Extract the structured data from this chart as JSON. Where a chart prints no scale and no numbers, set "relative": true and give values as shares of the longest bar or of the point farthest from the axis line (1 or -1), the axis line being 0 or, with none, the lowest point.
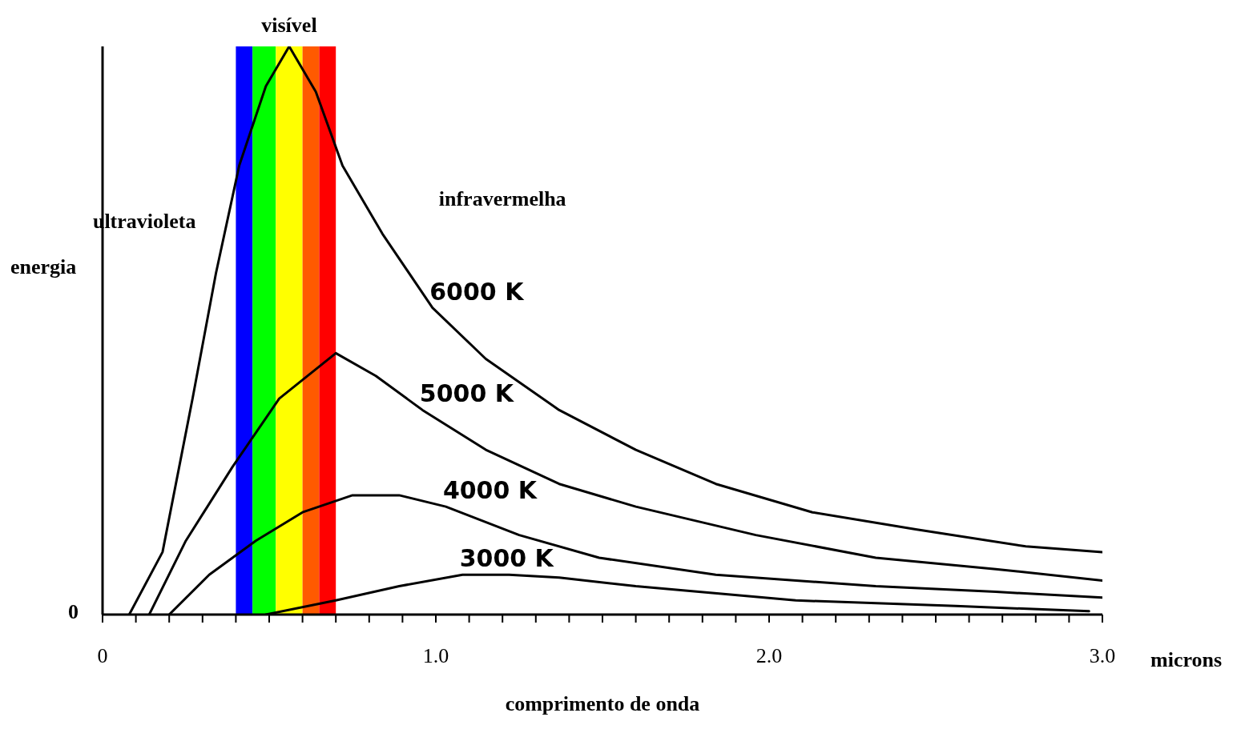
{
  "chart_data": {
    "type": "line",
    "relative": true,
    "xlabel": "comprimento de onda",
    "ylabel": "energia",
    "xlim": [
      0,
      3
    ],
    "xticks": [
      0,
      {
        "value": 0.1,
        "label": null
      },
      {
        "value": 0.2,
        "label": null
      },
      {
        "value": 0.3,
        "label": null
      },
      {
        "value": 0.4,
        "label": null
      },
      {
        "value": 0.5,
        "label": null
      },
      {
        "value": 0.6,
        "label": null
      },
      {
        "value": 0.7,
        "label": null
      },
      {
        "value": 0.8,
        "label": null
      },
      {
        "value": 0.9,
        "label": null
      },
      {
        "value": 1,
        "label": "1.0"
      },
      {
        "value": 1.1,
        "label": null
      },
      {
        "value": 1.2,
        "label": null
      },
      {
        "value": 1.3,
        "label": null
      },
      {
        "value": 1.4,
        "label": null
      },
      {
        "value": 1.5,
        "label": null
      },
      {
        "value": 1.6,
        "label": null
      },
      {
        "value": 1.7,
        "label": null
      },
      {
        "value": 1.8,
        "label": null
      },
      {
        "value": 1.9,
        "label": null
      },
      {
        "value": 2,
        "label": "2.0"
      },
      {
        "value": 2.1,
        "label": null
      },
      {
        "value": 2.2,
        "label": null
      },
      {
        "value": 2.3,
        "label": null
      },
      {
        "value": 2.4,
        "label": null
      },
      {
        "value": 2.5,
        "label": null
      },
      {
        "value": 2.6,
        "label": null
      },
      {
        "value": 2.7,
        "label": null
      },
      {
        "value": 2.8,
        "label": null
      },
      {
        "value": 2.9,
        "label": null
      },
      {
        "value": 3,
        "label": "3.0"
      }
    ],
    "marker": "none",
    "line_style": "solid",
    "series": [
      {
        "name": "6000 K",
        "color": "#000000",
        "x": [
          0.08,
          0.18,
          0.27,
          0.34,
          0.41,
          0.49,
          0.56,
          0.64,
          0.72,
          0.84,
          0.99,
          1.15,
          1.37,
          1.6,
          1.84,
          2.13,
          2.44,
          2.77,
          3.0
        ],
        "values": [
          0,
          0.11,
          0.38,
          0.6,
          0.79,
          0.93,
          1,
          0.92,
          0.79,
          0.67,
          0.54,
          0.45,
          0.36,
          0.29,
          0.23,
          0.18,
          0.15,
          0.12,
          0.11
        ]
      },
      {
        "name": "5000 K",
        "color": "#000000",
        "x": [
          0.14,
          0.25,
          0.39,
          0.53,
          0.7,
          0.82,
          0.96,
          1.15,
          1.37,
          1.6,
          1.96,
          2.32,
          2.68,
          3.0
        ],
        "values": [
          0,
          0.13,
          0.26,
          0.38,
          0.46,
          0.42,
          0.36,
          0.29,
          0.23,
          0.19,
          0.14,
          0.1,
          0.08,
          0.06
        ]
      },
      {
        "name": "4000 K",
        "color": "#000000",
        "x": [
          0.2,
          0.32,
          0.46,
          0.6,
          0.75,
          0.89,
          1.03,
          1.25,
          1.49,
          1.84,
          2.32,
          2.68,
          3.0
        ],
        "values": [
          0,
          0.07,
          0.13,
          0.18,
          0.21,
          0.21,
          0.19,
          0.14,
          0.1,
          0.07,
          0.05,
          0.04,
          0.03
        ]
      },
      {
        "name": "3000 K",
        "color": "#000000",
        "x": [
          0.49,
          0.7,
          0.89,
          1.08,
          1.22,
          1.37,
          1.6,
          2.08,
          2.56,
          2.96
        ],
        "values": [
          0,
          0.025,
          0.05,
          0.07,
          0.07,
          0.065,
          0.05,
          0.025,
          0.015,
          0.006
        ]
      }
    ],
    "bands": [
      {
        "axis": "x",
        "from": 0.4,
        "to": 0.45,
        "color": "#0000ff"
      },
      {
        "axis": "x",
        "from": 0.45,
        "to": 0.52,
        "color": "#00ff00"
      },
      {
        "axis": "x",
        "from": 0.52,
        "to": 0.6,
        "color": "#ffff00"
      },
      {
        "axis": "x",
        "from": 0.6,
        "to": 0.65,
        "color": "#ff5a00"
      },
      {
        "axis": "x",
        "from": 0.65,
        "to": 0.7,
        "color": "#ff0000"
      }
    ],
    "annotations": [
      "visível",
      "ultravioleta",
      "infravermelha",
      "0",
      "microns"
    ]
  }
}
